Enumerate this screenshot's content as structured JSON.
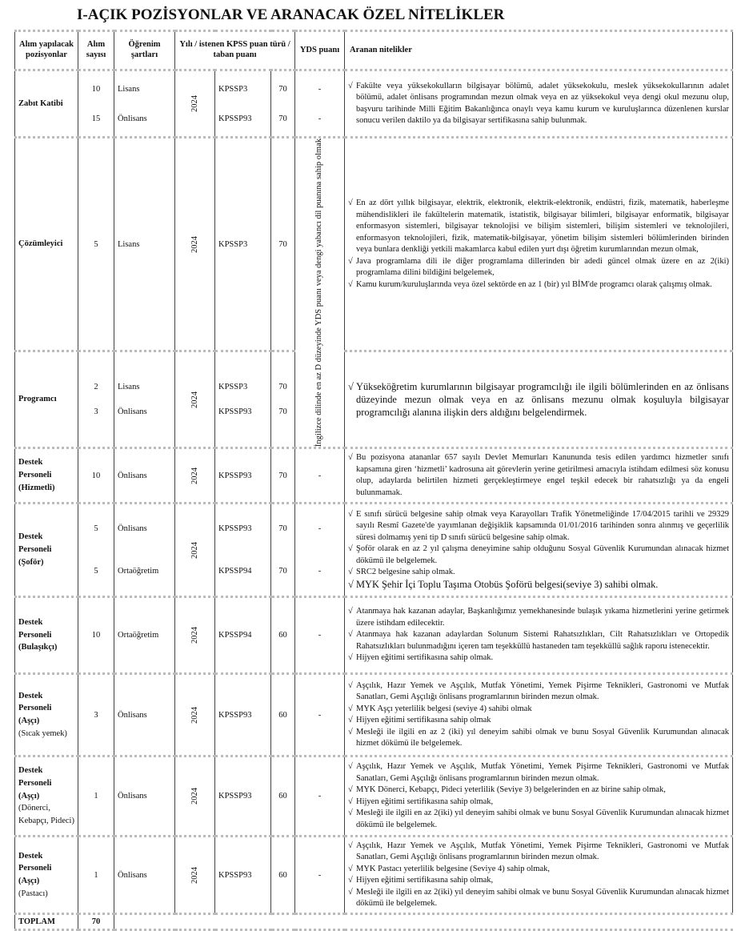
{
  "title": "I-AÇIK POZİSYONLAR VE ARANACAK ÖZEL NİTELİKLER",
  "table": {
    "headers": [
      "Alım yapılacak pozisyonlar",
      "Alım sayısı",
      "Öğrenim şartları",
      "Yılı / istenen KPSS  puan türü / taban puanı",
      "YDS puanı",
      "Aranan nitelikler"
    ],
    "yds_merged": "İngilizce dilinde en az D düzeyinde YDS puanı veya dengi yabancı dil puanına sahip olmak",
    "rows": [
      {
        "position": "Zabıt Katibi",
        "year": 2024,
        "entries": [
          {
            "count": 10,
            "education": "Lisans",
            "kpss": "KPSSP3",
            "score": 70,
            "yds": "-"
          },
          {
            "count": 15,
            "education": "Önlisans",
            "kpss": "KPSSP93",
            "score": 70,
            "yds": "-"
          }
        ],
        "qualifications": [
          "Fakülte veya yüksekokulların bilgisayar bölümü, adalet yüksekokulu, meslek yüksekokullarının adalet bölümü, adalet önlisans programından mezun olmak veya en az yüksekokul veya dengi okul mezunu olup, başvuru tarihinde Milli Eğitim Bakanlığınca onaylı veya kamu kurum ve kuruluşlarınca düzenlenen kurslar sonucu verilen daktilo ya da bilgisayar sertifikasına sahip bulunmak."
        ]
      },
      {
        "position": "Çözümleyici",
        "year": 2024,
        "entries": [
          {
            "count": 5,
            "education": "Lisans",
            "kpss": "KPSSP3",
            "score": 70
          }
        ],
        "qualifications": [
          "En az dört yıllık bilgisayar, elektrik, elektronik, elektrik-elektronik, endüstri, fizik, matematik, haberleşme mühendislikleri ile fakültelerin matematik, istatistik, bilgisayar bilimleri, bilgisayar enformatik, bilgisayar enformasyon sistemleri, bilgisayar teknolojisi ve bilişim sistemleri, bilişim sistemleri ve teknolojileri, enformasyon teknolojileri, fizik, matematik-bilgisayar, yönetim bilişim sistemleri bölümlerinden birinden veya bunlara denkliği yetkili makamlarca kabul edilen yurt dışı öğretim kurumlarından mezun olmak,",
          "Java programlama dili ile diğer programlama dillerinden bir adedi güncel olmak üzere en az 2(iki) programlama dilini bildiğini belgelemek,",
          "Kamu kurum/kuruluşlarında veya özel sektörde en az 1 (bir) yıl BİM'de programcı olarak çalışmış olmak."
        ]
      },
      {
        "position": "Programcı",
        "year": 2024,
        "entries": [
          {
            "count": 2,
            "education": "Lisans",
            "kpss": "KPSSP3",
            "score": 70
          },
          {
            "count": 3,
            "education": "Önlisans",
            "kpss": "KPSSP93",
            "score": 70
          }
        ],
        "qualifications": [
          "Yükseköğretim kurumlarının bilgisayar programcılığı ile ilgili bölümlerinden en az önlisans düzeyinde mezun olmak veya en az önlisans mezunu olmak koşuluyla bilgisayar programcılığı alanına ilişkin ders aldığını belgelendirmek."
        ]
      },
      {
        "position": "Destek Personeli (Hizmetli)",
        "year": 2024,
        "entries": [
          {
            "count": 10,
            "education": "Önlisans",
            "kpss": "KPSSP93",
            "score": 70,
            "yds": "-"
          }
        ],
        "qualifications": [
          "Bu pozisyona atananlar 657 sayılı Devlet Memurları Kanununda tesis edilen yardımcı hizmetler sınıfı kapsamına giren ‘hizmetli’ kadrosuna ait görevlerin yerine getirilmesi amacıyla istihdam edilmesi söz konusu olup, adaylarda belirtilen hizmeti gerçekleştirmeye engel teşkil edecek bir rahatsızlığı ya da engeli bulunmamak."
        ]
      },
      {
        "position": "Destek Personeli (Şoför)",
        "year": 2024,
        "entries": [
          {
            "count": 5,
            "education": "Önlisans",
            "kpss": "KPSSP93",
            "score": 70,
            "yds": "-"
          },
          {
            "count": 5,
            "education": "Ortaöğretim",
            "kpss": "KPSSP94",
            "score": 70,
            "yds": "-"
          }
        ],
        "qualifications": [
          "E sınıfı sürücü belgesine sahip olmak veya Karayolları Trafik Yönetmeliğinde 17/04/2015 tarihli ve 29329 sayılı Resmî Gazete'de yayımlanan değişiklik kapsamında 01/01/2016 tarihinden sonra alınmış ve geçerlilik süresi dolmamış yeni tip D sınıfı sürücü belgesine sahip olmak.",
          "Şoför olarak en az 2 yıl çalışma deneyimine sahip olduğunu Sosyal Güvenlik Kurumundan alınacak hizmet dökümü ile belgelemek.",
          "SRC2 belgesine sahip olmak.",
          "MYK  Şehir İçi Toplu Taşıma Otobüs Şoförü belgesi(seviye 3) sahibi olmak."
        ]
      },
      {
        "position": "Destek Personeli (Bulaşıkçı)",
        "year": 2024,
        "entries": [
          {
            "count": 10,
            "education": "Ortaöğretim",
            "kpss": "KPSSP94",
            "score": 60,
            "yds": "-"
          }
        ],
        "qualifications": [
          "Atanmaya hak kazanan adaylar, Başkanlığımız yemekhanesinde bulaşık yıkama hizmetlerini yerine getirmek üzere istihdam edilecektir.",
          "Atanmaya hak kazanan adaylardan Solunum Sistemi Rahatsızlıkları, Cilt Rahatsızlıkları ve Ortopedik Rahatsızlıkları bulunmadığını içeren tam teşekküllü hastaneden tam teşekküllü sağlık raporu istenecektir.",
          "Hijyen eğitimi sertifikasına sahip olmak."
        ]
      },
      {
        "position": "Destek Personeli (Aşçı)",
        "position_note": "(Sıcak yemek)",
        "year": 2024,
        "entries": [
          {
            "count": 3,
            "education": "Önlisans",
            "kpss": "KPSSP93",
            "score": 60,
            "yds": "-"
          }
        ],
        "qualifications": [
          "Aşçılık, Hazır Yemek ve Aşçılık, Mutfak Yönetimi, Yemek Pişirme Teknikleri, Gastronomi ve Mutfak Sanatları, Gemi Aşçılığı önlisans programlarının birinden mezun olmak.",
          "MYK  Aşçı yeterlilik belgesi (seviye 4) sahibi olmak",
          "Hijyen eğitimi sertifikasına sahip olmak",
          "Mesleği ile ilgili en az 2 (iki) yıl deneyim sahibi olmak ve bunu Sosyal Güvenlik Kurumundan alınacak hizmet dökümü ile belgelemek."
        ]
      },
      {
        "position": "Destek Personeli (Aşçı)",
        "position_note": "(Dönerci, Kebapçı, Pideci)",
        "year": 2024,
        "entries": [
          {
            "count": 1,
            "education": "Önlisans",
            "kpss": "KPSSP93",
            "score": 60,
            "yds": "-"
          }
        ],
        "qualifications": [
          "Aşçılık, Hazır Yemek ve Aşçılık, Mutfak Yönetimi, Yemek Pişirme Teknikleri, Gastronomi ve Mutfak Sanatları, Gemi Aşçılığı önlisans programlarının birinden mezun olmak.",
          "MYK  Dönerci, Kebapçı, Pideci yeterlilik (Seviye 3) belgelerinden en az birine sahip olmak,",
          "Hijyen eğitimi sertifikasına sahip olmak,",
          "Mesleği ile ilgili en az 2(iki) yıl deneyim sahibi olmak ve bunu Sosyal Güvenlik Kurumundan alınacak hizmet dökümü ile belgelemek."
        ]
      },
      {
        "position": "Destek Personeli (Aşçı)",
        "position_note": "(Pastacı)",
        "year": 2024,
        "entries": [
          {
            "count": 1,
            "education": "Önlisans",
            "kpss": "KPSSP93",
            "score": 60,
            "yds": "-"
          }
        ],
        "qualifications": [
          "Aşçılık, Hazır Yemek ve Aşçılık, Mutfak Yönetimi, Yemek Pişirme Teknikleri, Gastronomi ve Mutfak Sanatları, Gemi Aşçılığı önlisans programlarının birinden mezun olmak.",
          "MYK  Pastacı yeterlilik belgesine (Seviye 4) sahip olmak,",
          "Hijyen eğitimi sertifikasına sahip olmak,",
          "Mesleği ile ilgili en az 2(iki) yıl deneyim sahibi olmak ve bunu Sosyal Güvenlik Kurumundan alınacak hizmet dökümü ile belgelemek."
        ]
      }
    ],
    "total_label": "TOPLAM",
    "total": 70
  }
}
